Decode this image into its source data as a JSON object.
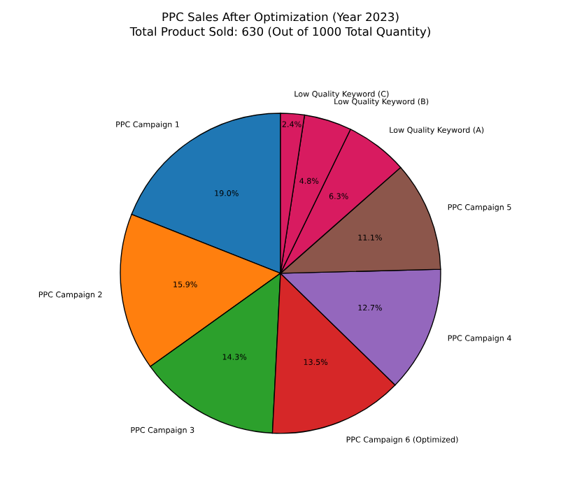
{
  "chart_data": {
    "type": "pie",
    "title": "PPC Sales After Optimization (Year 2023)",
    "subtitle": "Total Product Sold: 630 (Out of 1000 Total Quantity)",
    "categories": [
      "PPC Campaign 1",
      "PPC Campaign 2",
      "PPC Campaign 3",
      "PPC Campaign 6 (Optimized)",
      "PPC Campaign 4",
      "PPC Campaign 5",
      "Low Quality Keyword (A)",
      "Low Quality Keyword (B)",
      "Low Quality Keyword (C)"
    ],
    "values": [
      19.0,
      15.9,
      14.3,
      13.5,
      12.7,
      11.1,
      6.3,
      4.8,
      2.4
    ],
    "value_labels": [
      "19.0%",
      "15.9%",
      "14.3%",
      "13.5%",
      "12.7%",
      "11.1%",
      "6.3%",
      "4.8%",
      "2.4%"
    ],
    "colors": [
      "#1f77b4",
      "#ff7f0e",
      "#2ca02c",
      "#d62728",
      "#9467bd",
      "#8c564b",
      "#d81b60",
      "#d81b60",
      "#d81b60"
    ]
  }
}
